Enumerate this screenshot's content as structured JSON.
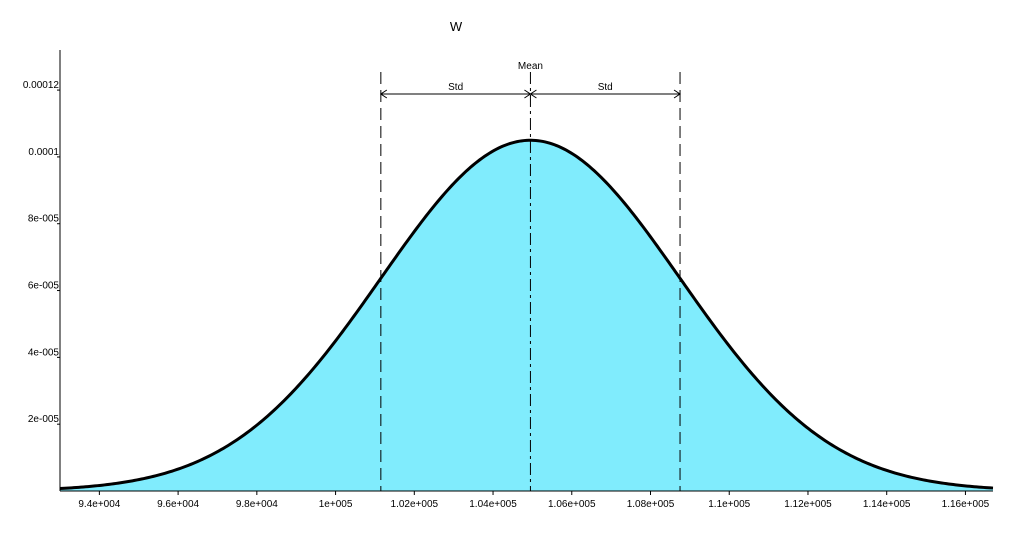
{
  "chart_data": {
    "type": "area",
    "title": "W",
    "xlabel": "",
    "ylabel": "",
    "distribution": "normal",
    "mean": 104950,
    "std": 3800,
    "xlim": [
      93000,
      116700
    ],
    "ylim": [
      0,
      0.000132
    ],
    "x_ticks": [
      {
        "value": 94000,
        "label": "9.4e+004"
      },
      {
        "value": 96000,
        "label": "9.6e+004"
      },
      {
        "value": 98000,
        "label": "9.8e+004"
      },
      {
        "value": 100000,
        "label": "1e+005"
      },
      {
        "value": 102000,
        "label": "1.02e+005"
      },
      {
        "value": 104000,
        "label": "1.04e+005"
      },
      {
        "value": 106000,
        "label": "1.06e+005"
      },
      {
        "value": 108000,
        "label": "1.08e+005"
      },
      {
        "value": 110000,
        "label": "1.1e+005"
      },
      {
        "value": 112000,
        "label": "1.12e+005"
      },
      {
        "value": 114000,
        "label": "1.14e+005"
      },
      {
        "value": 116000,
        "label": "1.16e+005"
      }
    ],
    "y_ticks": [
      {
        "value": 2e-05,
        "label": "2e-005"
      },
      {
        "value": 4e-05,
        "label": "4e-005"
      },
      {
        "value": 6e-05,
        "label": "6e-005"
      },
      {
        "value": 8e-05,
        "label": "8e-005"
      },
      {
        "value": 0.0001,
        "label": "0.0001"
      },
      {
        "value": 0.00012,
        "label": "0.00012"
      }
    ],
    "annotations": {
      "mean_label": "Mean",
      "std_label": "Std"
    },
    "grid": false,
    "fill_color": "#80ECFD",
    "line_color": "#000000"
  }
}
